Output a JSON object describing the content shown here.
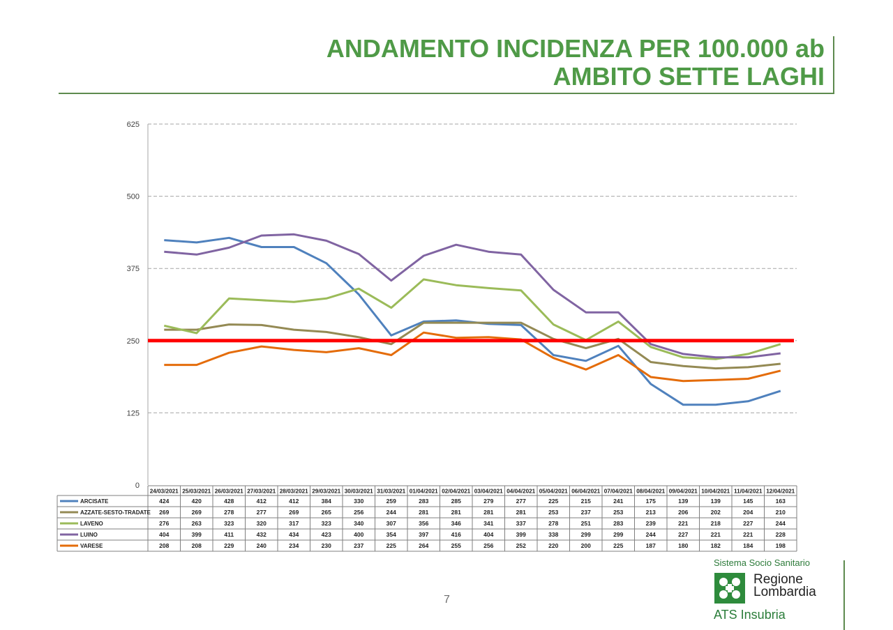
{
  "title": {
    "line1": "ANDAMENTO INCIDENZA PER 100.000 ab",
    "line2": "AMBITO SETTE LAGHI",
    "color": "#4f9a47"
  },
  "chart_data": {
    "type": "line",
    "y_ticks": [
      "0",
      "125",
      "250",
      "375",
      "500",
      "625"
    ],
    "ylim": [
      0,
      625
    ],
    "grid": "dashed horizontal",
    "categories": [
      "24/03/2021",
      "25/03/2021",
      "26/03/2021",
      "27/03/2021",
      "28/03/2021",
      "29/03/2021",
      "30/03/2021",
      "31/03/2021",
      "01/04/2021",
      "02/04/2021",
      "03/04/2021",
      "04/04/2021",
      "05/04/2021",
      "06/04/2021",
      "07/04/2021",
      "08/04/2021",
      "09/04/2021",
      "10/04/2021",
      "11/04/2021",
      "12/04/2021"
    ],
    "threshold": {
      "value": 250,
      "color": "#ff0000"
    },
    "series": [
      {
        "name": "ARCISATE",
        "color": "#4f81bd",
        "values": [
          424,
          420,
          428,
          412,
          412,
          384,
          330,
          259,
          283,
          285,
          279,
          277,
          225,
          215,
          241,
          175,
          139,
          139,
          145,
          163
        ]
      },
      {
        "name": "AZZATE-SESTO-TRADATE",
        "color": "#948a54",
        "values": [
          269,
          269,
          278,
          277,
          269,
          265,
          256,
          244,
          281,
          281,
          281,
          281,
          253,
          237,
          253,
          213,
          206,
          202,
          204,
          210
        ]
      },
      {
        "name": "LAVENO",
        "color": "#9bbb59",
        "values": [
          276,
          263,
          323,
          320,
          317,
          323,
          340,
          307,
          356,
          346,
          341,
          337,
          278,
          251,
          283,
          239,
          221,
          218,
          227,
          244
        ]
      },
      {
        "name": "LUINO",
        "color": "#8064a2",
        "values": [
          404,
          399,
          411,
          432,
          434,
          423,
          400,
          354,
          397,
          416,
          404,
          399,
          338,
          299,
          299,
          244,
          227,
          221,
          221,
          228
        ]
      },
      {
        "name": "VARESE",
        "color": "#e46c0a",
        "values": [
          208,
          208,
          229,
          240,
          234,
          230,
          237,
          225,
          264,
          255,
          256,
          252,
          220,
          200,
          225,
          187,
          180,
          182,
          184,
          198
        ]
      }
    ]
  },
  "footer": {
    "page_number": "7",
    "logo_sistema": "Sistema Socio Sanitario",
    "logo_region_1": "Regione",
    "logo_region_2": "Lombardia",
    "logo_ats": "ATS Insubria",
    "logo_color": "#2e8b3c"
  }
}
